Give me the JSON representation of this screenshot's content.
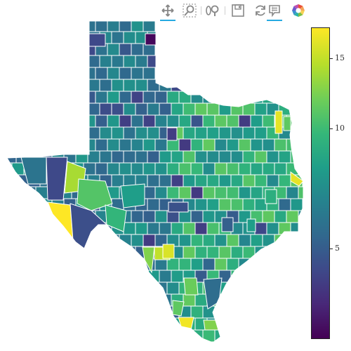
{
  "toolbar": {
    "tools": [
      {
        "name": "pan-icon",
        "active": true
      },
      {
        "name": "box-zoom-icon",
        "active": false
      },
      {
        "name": "wheel-zoom-icon",
        "active": false
      },
      {
        "name": "save-icon",
        "active": false
      },
      {
        "name": "reset-icon",
        "active": false
      },
      {
        "name": "hover-icon",
        "active": true
      },
      {
        "name": "bokeh-logo-icon",
        "active": false
      }
    ]
  },
  "colorbar": {
    "min": 0.8,
    "max": 16.7,
    "ticks": [
      "5",
      "10",
      "15"
    ],
    "tick_values": [
      5,
      10,
      15
    ],
    "colormap": "viridis"
  },
  "map": {
    "region": "Texas counties",
    "outline_color": "#ffffff"
  }
}
